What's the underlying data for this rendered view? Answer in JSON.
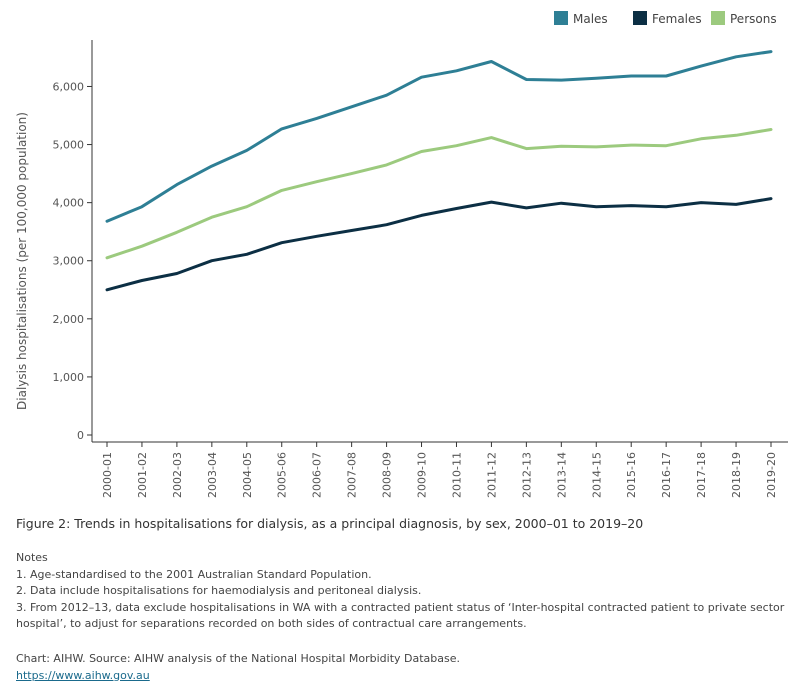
{
  "chart_data": {
    "type": "line",
    "title": "",
    "xlabel": "",
    "ylabel": "Dialysis hospitalisations (per 100,000 population)",
    "ylim": [
      0,
      6800
    ],
    "yticks": [
      0,
      1000,
      2000,
      3000,
      4000,
      5000,
      6000
    ],
    "ytick_labels": [
      "0",
      "1,000",
      "2,000",
      "3,000",
      "4,000",
      "5,000",
      "6,000"
    ],
    "categories": [
      "2000-01",
      "2001-02",
      "2002-03",
      "2003-04",
      "2004-05",
      "2005-06",
      "2006-07",
      "2007-08",
      "2008-09",
      "2009-10",
      "2010-11",
      "2011-12",
      "2012-13",
      "2013-14",
      "2014-15",
      "2015-16",
      "2016-17",
      "2017-18",
      "2018-19",
      "2019-20"
    ],
    "series": [
      {
        "name": "Males",
        "color": "#2e7f95",
        "values": [
          3680,
          3930,
          4310,
          4630,
          4900,
          5270,
          5450,
          5650,
          5850,
          6160,
          6270,
          6430,
          6120,
          6110,
          6140,
          6180,
          6180,
          6350,
          6510,
          6600
        ]
      },
      {
        "name": "Females",
        "color": "#0c2f44",
        "values": [
          2500,
          2660,
          2780,
          3000,
          3110,
          3310,
          3420,
          3520,
          3620,
          3780,
          3900,
          4010,
          3910,
          3990,
          3930,
          3950,
          3930,
          4000,
          3970,
          4070
        ]
      },
      {
        "name": "Persons",
        "color": "#9cca7e",
        "values": [
          3050,
          3250,
          3490,
          3750,
          3930,
          4210,
          4360,
          4500,
          4650,
          4880,
          4980,
          5120,
          4930,
          4970,
          4960,
          4990,
          4980,
          5100,
          5160,
          5260
        ]
      }
    ],
    "legend_position": "top-right",
    "grid": false
  },
  "caption": "Figure 2: Trends in hospitalisations for dialysis, as a principal diagnosis, by sex, 2000–01 to 2019–20",
  "notes": {
    "heading": "Notes",
    "items": [
      "1. Age-standardised to the 2001 Australian Standard Population.",
      "2. Data include hospitalisations for haemodialysis and peritoneal dialysis.",
      "3. From 2012–13, data exclude hospitalisations in WA with a contracted patient status of ‘Inter-hospital contracted patient to private sector hospital’, to adjust for separations recorded on both sides of contractual care arrangements."
    ]
  },
  "footer": {
    "source": "Chart: AIHW. Source: AIHW analysis of the National Hospital Morbidity Database.",
    "link": "https://www.aihw.gov.au"
  }
}
